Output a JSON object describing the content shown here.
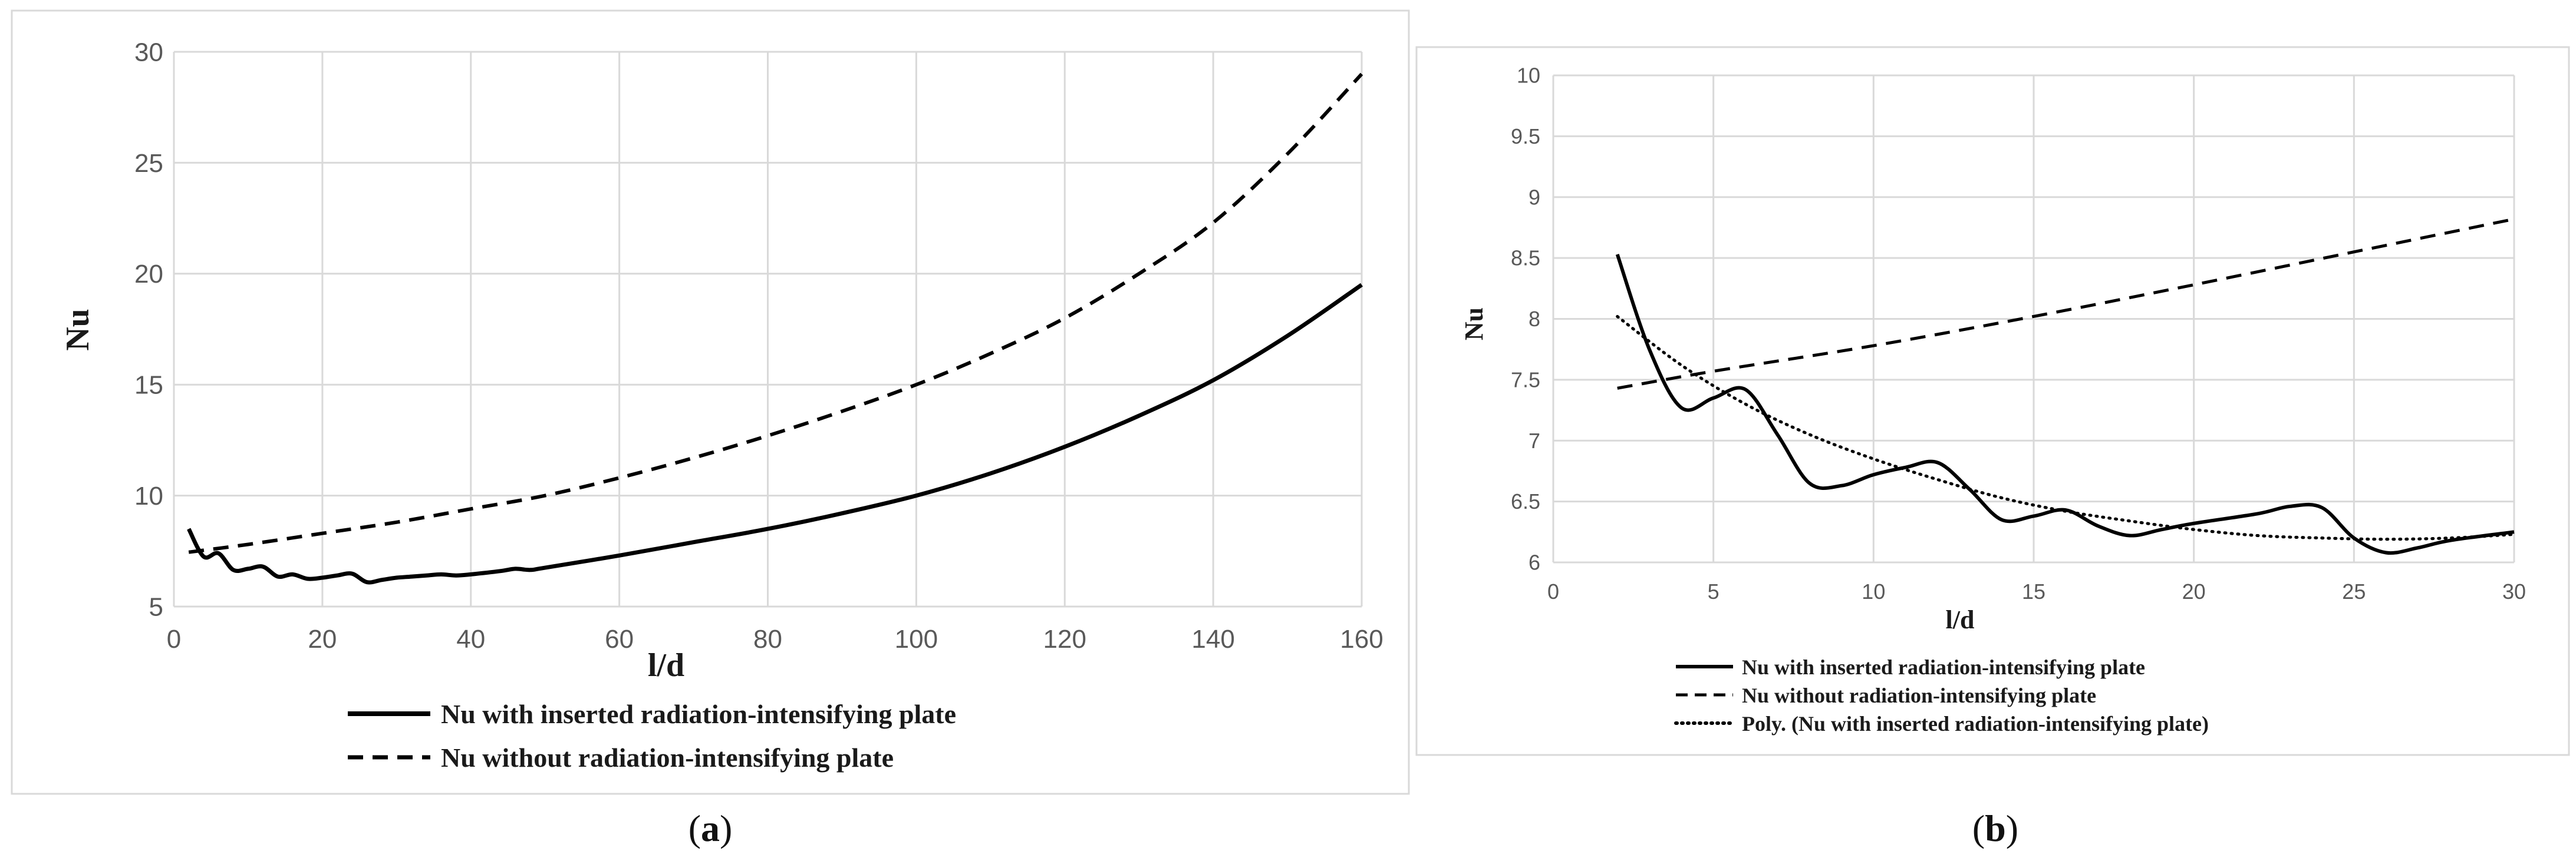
{
  "chart_data": [
    {
      "type": "line",
      "panel": "a",
      "caption": {
        "open": "(",
        "letter": "a",
        "close": ")"
      },
      "title": "",
      "xlabel": "l/d",
      "ylabel": "Nu",
      "xlim": [
        0,
        160
      ],
      "ylim": [
        5,
        30
      ],
      "xticks": [
        0,
        20,
        40,
        60,
        80,
        100,
        120,
        140,
        160
      ],
      "yticks": [
        5,
        10,
        15,
        20,
        25,
        30
      ],
      "grid": true,
      "legend_position": "bottom",
      "series": [
        {
          "name": "Nu with inserted radiation-intensifying plate",
          "style": "solid",
          "x": [
            2,
            4,
            6,
            8,
            10,
            12,
            14,
            16,
            18,
            20,
            22,
            24,
            26,
            28,
            30,
            32,
            34,
            36,
            38,
            40,
            44,
            46,
            48,
            50,
            60,
            70,
            80,
            90,
            100,
            110,
            120,
            130,
            140,
            150,
            160
          ],
          "y": [
            8.5,
            7.25,
            7.4,
            6.65,
            6.7,
            6.8,
            6.35,
            6.45,
            6.25,
            6.3,
            6.4,
            6.48,
            6.1,
            6.2,
            6.3,
            6.35,
            6.4,
            6.45,
            6.4,
            6.45,
            6.6,
            6.7,
            6.65,
            6.75,
            7.3,
            7.9,
            8.5,
            9.2,
            10.0,
            11.0,
            12.2,
            13.6,
            15.2,
            17.2,
            19.5
          ]
        },
        {
          "name": "Nu without radiation-intensifying plate",
          "style": "dashed",
          "x": [
            2,
            10,
            20,
            30,
            40,
            50,
            60,
            70,
            80,
            90,
            100,
            110,
            120,
            130,
            140,
            150,
            160
          ],
          "y": [
            7.45,
            7.8,
            8.3,
            8.8,
            9.4,
            10.0,
            10.8,
            11.7,
            12.7,
            13.8,
            15.0,
            16.4,
            18.0,
            20.0,
            22.3,
            25.4,
            29.0
          ]
        }
      ]
    },
    {
      "type": "line",
      "panel": "b",
      "caption": {
        "open": "(",
        "letter": "b",
        "close": ")"
      },
      "title": "",
      "xlabel": "l/d",
      "ylabel": "Nu",
      "xlim": [
        0,
        30
      ],
      "ylim": [
        6,
        10
      ],
      "xticks": [
        0,
        5,
        10,
        15,
        20,
        25,
        30
      ],
      "yticks": [
        6,
        6.5,
        7,
        7.5,
        8,
        8.5,
        9,
        9.5,
        10
      ],
      "grid": true,
      "legend_position": "bottom-left",
      "series": [
        {
          "name": "Nu with inserted radiation-intensifying plate",
          "style": "solid",
          "x": [
            2,
            3,
            4,
            5,
            6,
            7,
            8,
            9,
            10,
            11,
            12,
            13,
            14,
            15,
            16,
            17,
            18,
            19,
            20,
            22,
            23,
            24,
            25,
            26,
            27,
            28,
            30
          ],
          "y": [
            8.53,
            7.75,
            7.27,
            7.35,
            7.42,
            7.05,
            6.65,
            6.63,
            6.72,
            6.78,
            6.82,
            6.6,
            6.35,
            6.38,
            6.43,
            6.3,
            6.22,
            6.27,
            6.32,
            6.4,
            6.46,
            6.45,
            6.2,
            6.08,
            6.12,
            6.18,
            6.25
          ]
        },
        {
          "name": "Nu without radiation-intensifying plate",
          "style": "dashed",
          "x": [
            2,
            5,
            10,
            15,
            20,
            25,
            30
          ],
          "y": [
            7.43,
            7.57,
            7.78,
            8.02,
            8.28,
            8.55,
            8.82
          ]
        },
        {
          "name": "Poly. (Nu with inserted radiation-intensifying plate)",
          "style": "dotted",
          "x": [
            2,
            4,
            6,
            8,
            10,
            12,
            14,
            16,
            18,
            20,
            22,
            24,
            26,
            28,
            30
          ],
          "y": [
            8.02,
            7.62,
            7.3,
            7.05,
            6.85,
            6.68,
            6.53,
            6.42,
            6.34,
            6.27,
            6.22,
            6.2,
            6.19,
            6.2,
            6.23
          ]
        }
      ]
    }
  ]
}
